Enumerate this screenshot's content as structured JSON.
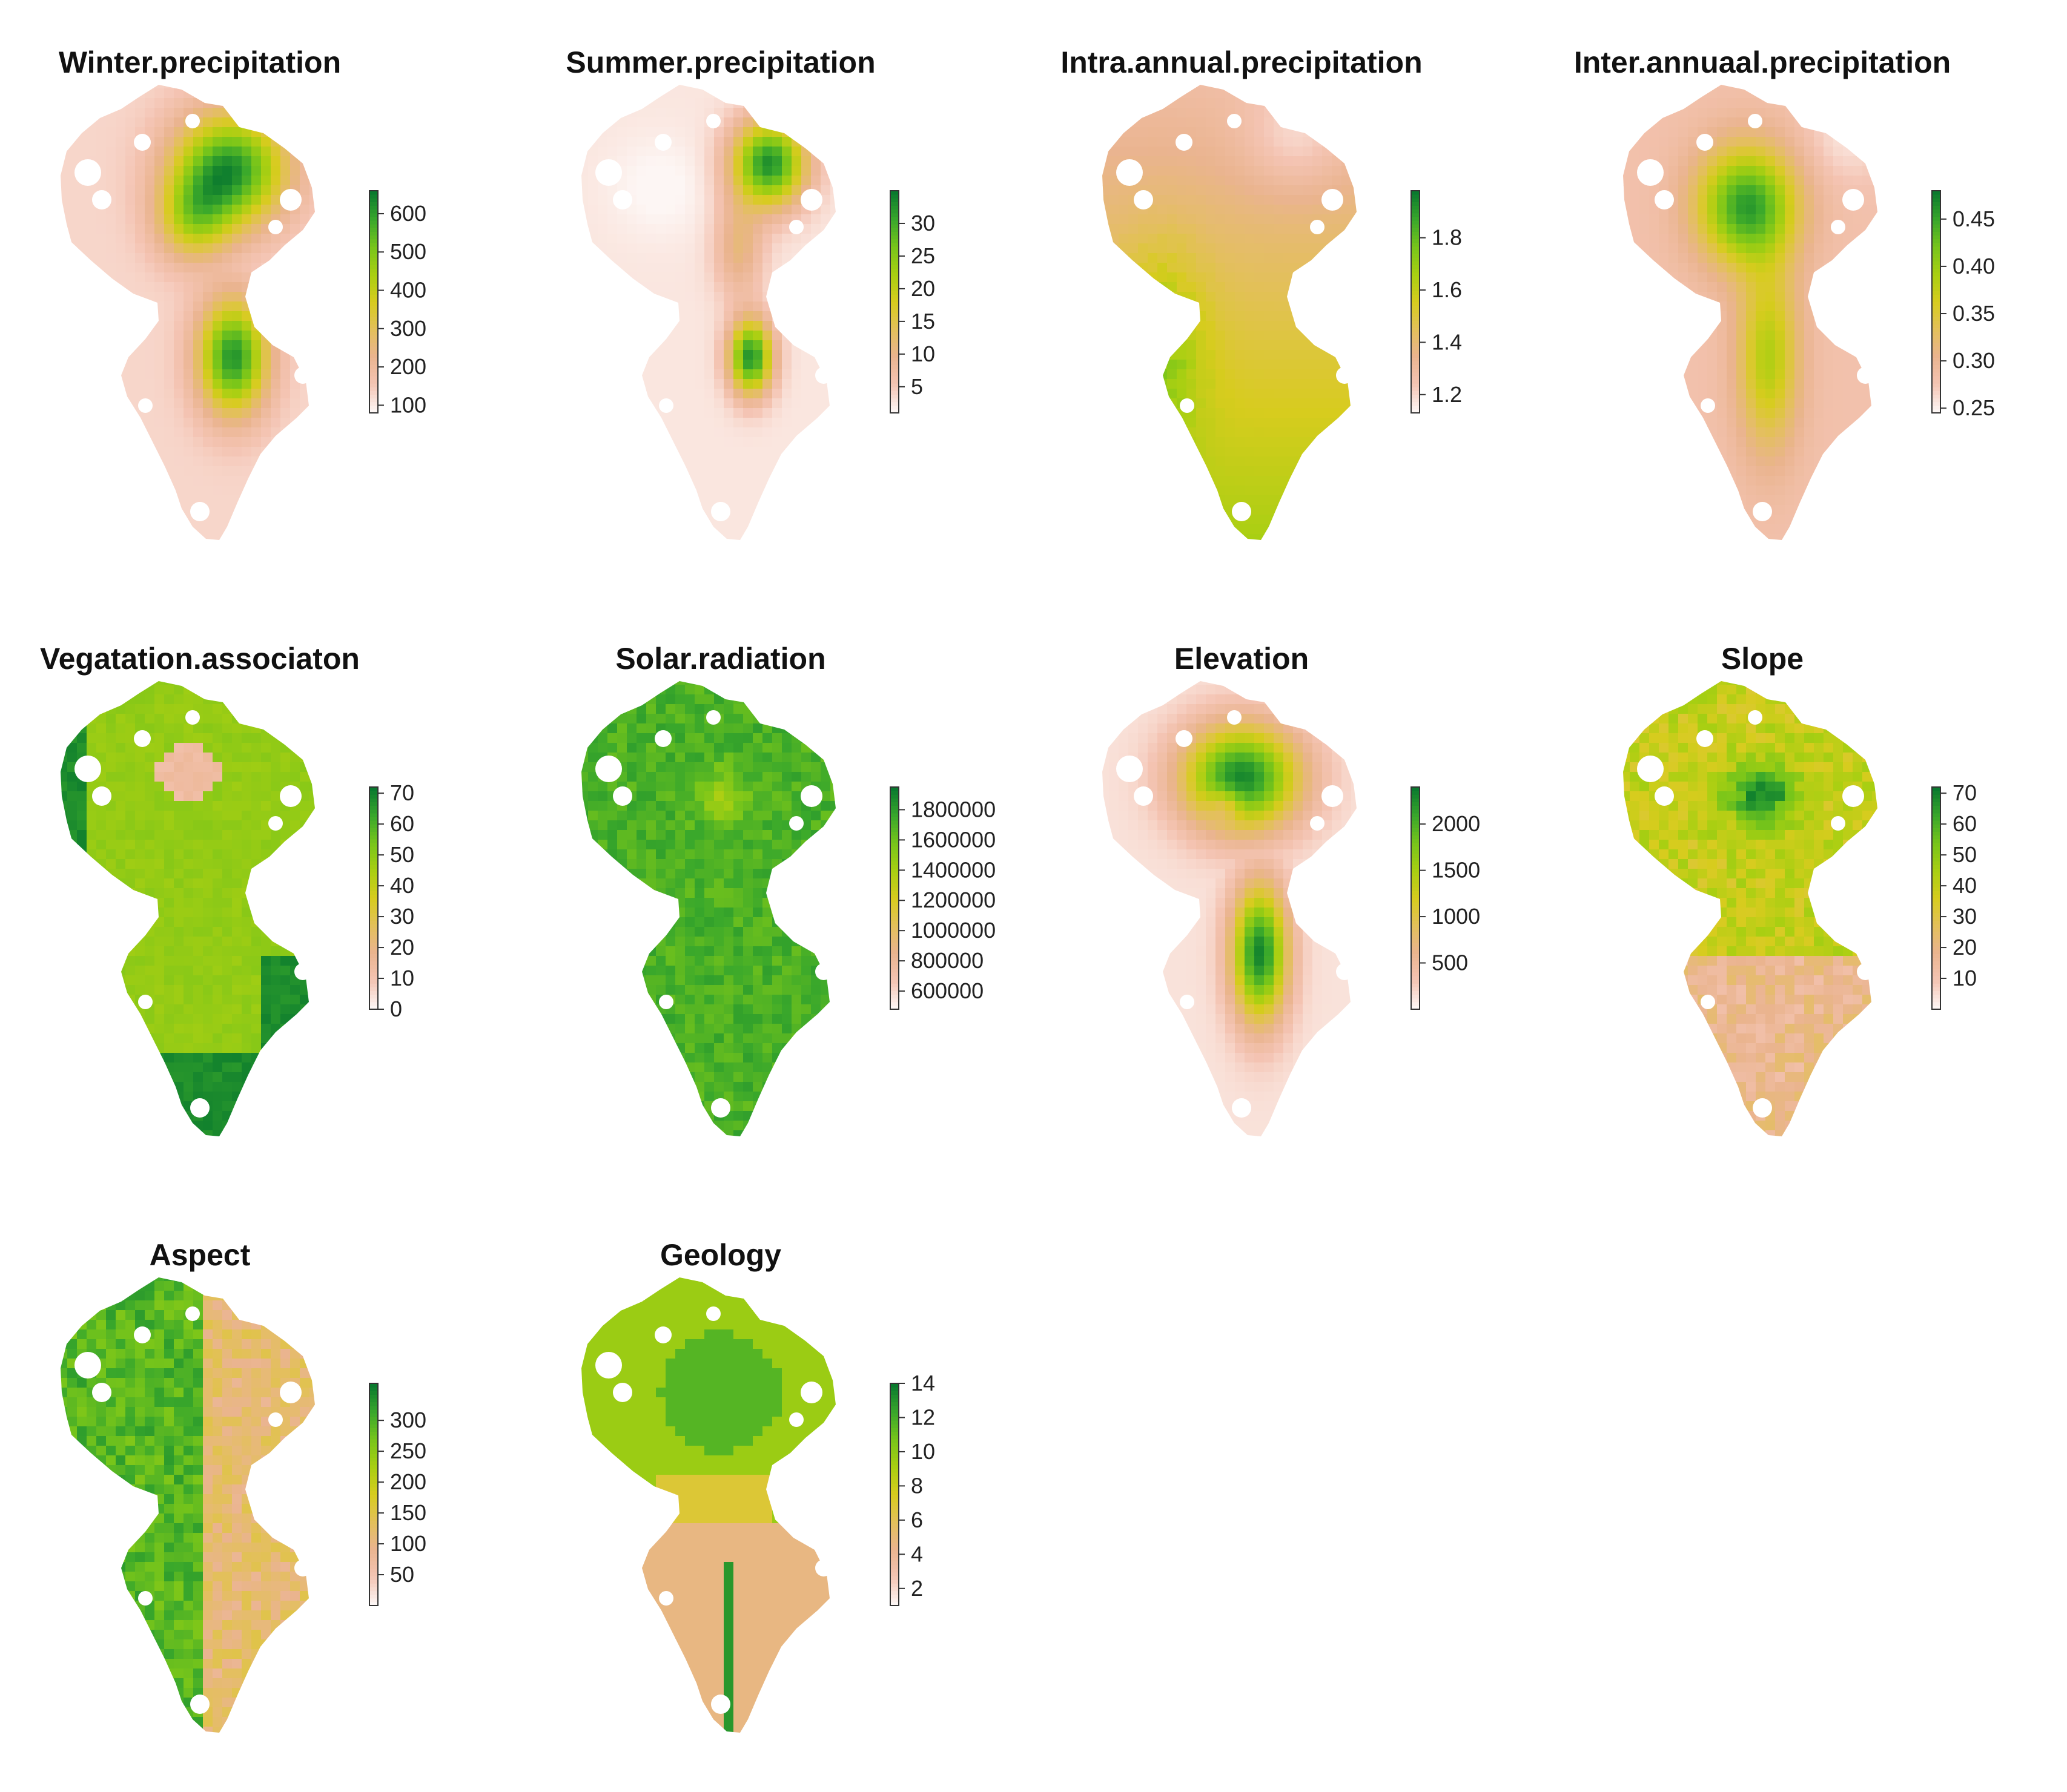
{
  "figure": {
    "panels": [
      {
        "title": "Winter.precipitation",
        "pattern": "winter",
        "legend": {
          "min": 80,
          "max": 660,
          "ticks": [
            100,
            200,
            300,
            400,
            500,
            600
          ],
          "labels": [
            "100",
            "200",
            "300",
            "400",
            "500",
            "600"
          ]
        }
      },
      {
        "title": "Summer.precipitation",
        "pattern": "summer",
        "legend": {
          "min": 1,
          "max": 35,
          "ticks": [
            5,
            10,
            15,
            20,
            25,
            30
          ],
          "labels": [
            "5",
            "10",
            "15",
            "20",
            "25",
            "30"
          ]
        }
      },
      {
        "title": "Intra.annual.precipitation",
        "pattern": "intra",
        "legend": {
          "min": 1.13,
          "max": 1.98,
          "ticks": [
            1.2,
            1.4,
            1.6,
            1.8
          ],
          "labels": [
            "1.2",
            "1.4",
            "1.6",
            "1.8"
          ]
        }
      },
      {
        "title": "Inter.annuaal.precipitation",
        "pattern": "inter",
        "legend": {
          "min": 0.245,
          "max": 0.48,
          "ticks": [
            0.25,
            0.3,
            0.35,
            0.4,
            0.45
          ],
          "labels": [
            "0.25",
            "0.30",
            "0.35",
            "0.40",
            "0.45"
          ]
        }
      },
      {
        "title": "Vegatation.associaton",
        "pattern": "veg",
        "legend": {
          "min": 0,
          "max": 72,
          "ticks": [
            0,
            10,
            20,
            30,
            40,
            50,
            60,
            70
          ],
          "labels": [
            "0",
            "10",
            "20",
            "30",
            "40",
            "50",
            "60",
            "70"
          ]
        }
      },
      {
        "title": "Solar.radiation",
        "pattern": "solar",
        "legend": {
          "min": 480000,
          "max": 1950000,
          "ticks": [
            600000,
            800000,
            1000000,
            1200000,
            1400000,
            1600000,
            1800000
          ],
          "labels": [
            "600000",
            "800000",
            "1000000",
            "1200000",
            "1400000",
            "1600000",
            "1800000"
          ]
        }
      },
      {
        "title": "Elevation",
        "pattern": "elev",
        "legend": {
          "min": 0,
          "max": 2400,
          "ticks": [
            500,
            1000,
            1500,
            2000
          ],
          "labels": [
            "500",
            "1000",
            "1500",
            "2000"
          ]
        }
      },
      {
        "title": "Slope",
        "pattern": "slope",
        "legend": {
          "min": 0,
          "max": 72,
          "ticks": [
            10,
            20,
            30,
            40,
            50,
            60,
            70
          ],
          "labels": [
            "10",
            "20",
            "30",
            "40",
            "50",
            "60",
            "70"
          ]
        }
      },
      {
        "title": "Aspect",
        "pattern": "aspect",
        "legend": {
          "min": 0,
          "max": 360,
          "ticks": [
            50,
            100,
            150,
            200,
            250,
            300
          ],
          "labels": [
            "50",
            "100",
            "150",
            "200",
            "250",
            "300"
          ]
        }
      },
      {
        "title": "Geology",
        "pattern": "geo",
        "legend": {
          "min": 1,
          "max": 14,
          "ticks": [
            2,
            4,
            6,
            8,
            10,
            12,
            14
          ],
          "labels": [
            "2",
            "4",
            "6",
            "8",
            "10",
            "12",
            "14"
          ]
        }
      }
    ]
  },
  "colors": {
    "ramp": [
      "#fdf6f4",
      "#f4c4b3",
      "#eab48f",
      "#e3c05a",
      "#d7cc1e",
      "#a9cf12",
      "#78c51a",
      "#3aa82b",
      "#0a7a2e"
    ],
    "legend_frame": "#333333"
  }
}
